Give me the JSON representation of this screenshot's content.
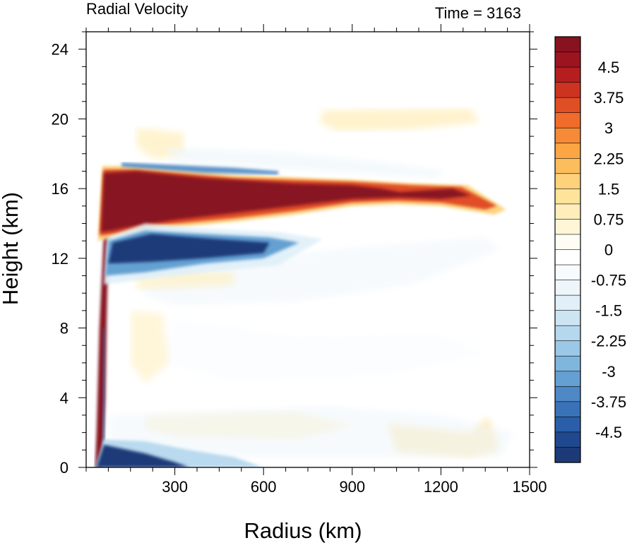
{
  "chart_data": {
    "type": "heatmap",
    "title_left": "Radial Velocity",
    "title_right": "Time = 3163",
    "xlabel": "Radius (km)",
    "ylabel": "Height (km)",
    "xlim": [
      0,
      1500
    ],
    "ylim": [
      0,
      25
    ],
    "xticks": [
      300,
      600,
      900,
      1200,
      1500
    ],
    "yticks": [
      0,
      4,
      8,
      12,
      16,
      20,
      24
    ],
    "colorbar": {
      "vmin": -5.25,
      "vmax": 5.25,
      "step": 0.375,
      "tick_labels": [
        "4.5",
        "3.75",
        "3",
        "2.25",
        "1.5",
        "0.75",
        "0",
        "-0.75",
        "-1.5",
        "-2.25",
        "-3",
        "-3.75",
        "-4.5"
      ],
      "tick_values": [
        4.5,
        3.75,
        3,
        2.25,
        1.5,
        0.75,
        0,
        -0.75,
        -1.5,
        -2.25,
        -3,
        -3.75,
        -4.5
      ],
      "colors": [
        "#1d3a78",
        "#20488f",
        "#2a5ea8",
        "#3a72b8",
        "#4e88c5",
        "#65a0d2",
        "#7fb6dd",
        "#9bc8e6",
        "#b6d8ee",
        "#cde5f3",
        "#e0eff8",
        "#eef6fb",
        "#f7fbfd",
        "#ffffff",
        "#fffdf3",
        "#fff6d8",
        "#ffeebb",
        "#fee39b",
        "#fdd27a",
        "#fcbd5c",
        "#fba544",
        "#f78a36",
        "#ef6c2c",
        "#e04e25",
        "#cc3321",
        "#b41e1f",
        "#9b1420",
        "#881220"
      ]
    },
    "features": [
      {
        "name": "upper-level outflow jet",
        "r": [
          40,
          1400
        ],
        "z": [
          13.8,
          17.0
        ],
        "max_value": 5.25
      },
      {
        "name": "inflow layer below outflow",
        "r": [
          60,
          750
        ],
        "z": [
          11.6,
          13.8
        ],
        "min_value": -5.25
      },
      {
        "name": "boundary layer inflow",
        "r": [
          30,
          600
        ],
        "z": [
          0,
          1.4
        ],
        "min_value": -5.25
      },
      {
        "name": "eyewall outflow",
        "r": [
          30,
          90
        ],
        "z": [
          0,
          16
        ],
        "max_value": 5.25
      }
    ]
  }
}
